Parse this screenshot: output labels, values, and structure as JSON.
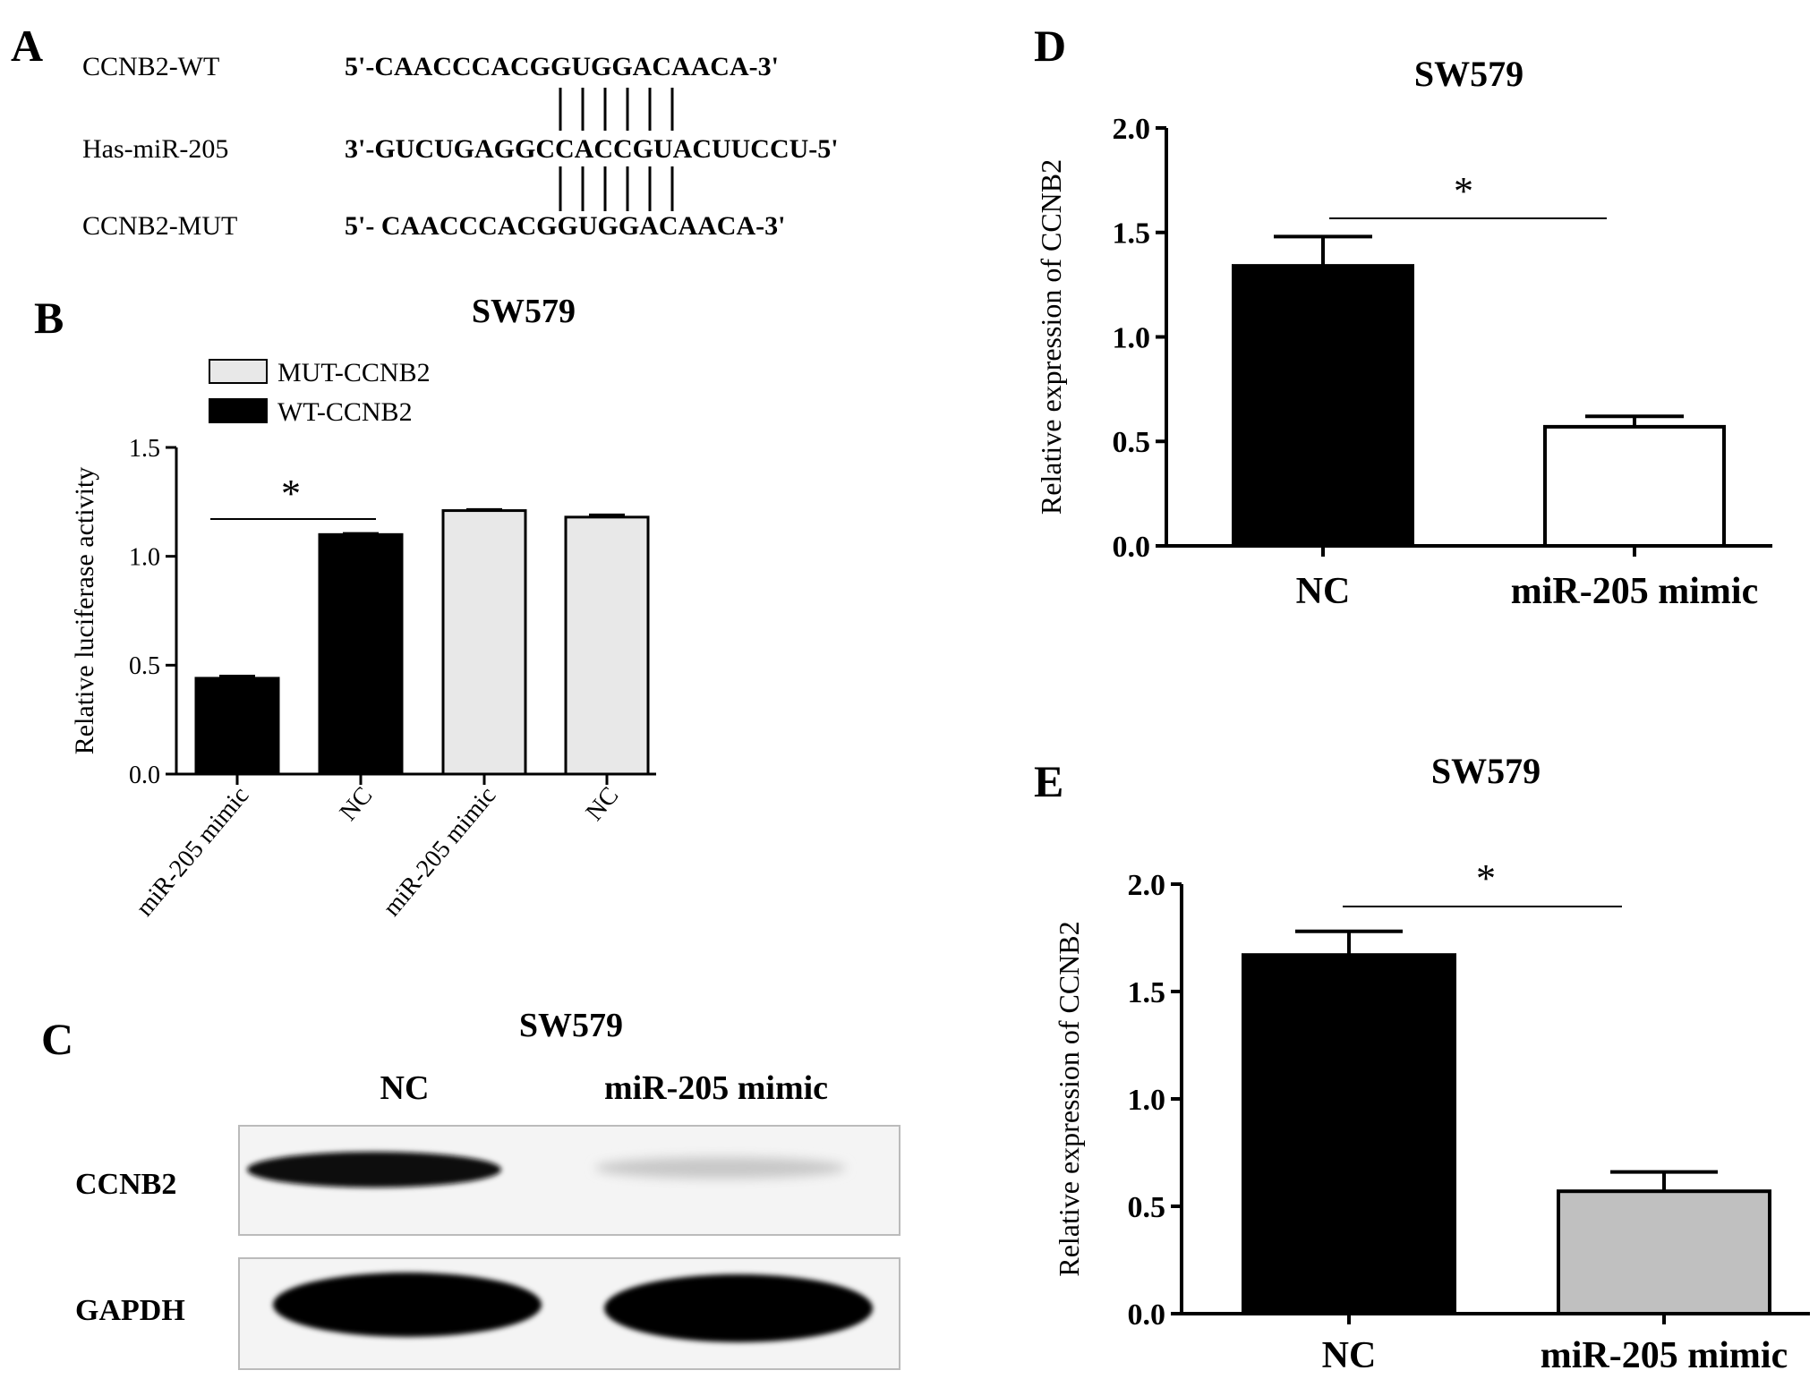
{
  "panel_letters": {
    "a": "A",
    "b": "B",
    "c": "C",
    "d": "D",
    "e": "E"
  },
  "panel_a": {
    "rows": [
      {
        "label": "CCNB2-WT",
        "sequence": "5'-CAACCCACGGUGGACAACA-3'"
      },
      {
        "label": "Has-miR-205",
        "sequence": "3'-GUCUGAGGCCACCGUACUUCCU-5'"
      },
      {
        "label": "CCNB2-MUT",
        "sequence": "5'- CAACCCACGGUGGACAACA-3'"
      }
    ]
  },
  "panel_c": {
    "title": "SW579",
    "lanes": [
      "NC",
      "miR-205 mimic"
    ],
    "blots": [
      "CCNB2",
      "GAPDH"
    ]
  },
  "chart_data": [
    {
      "panel": "B",
      "type": "bar",
      "title": "SW579",
      "ylabel": "Relative luciferase activity",
      "xlabel": "",
      "ylim": [
        0,
        1.5
      ],
      "yticks": [
        "0.0",
        "0.5",
        "1.0",
        "1.5"
      ],
      "categories": [
        "miR-205 mimic",
        "NC",
        "miR-205 mimic",
        "NC"
      ],
      "values": [
        0.44,
        1.1,
        1.21,
        1.18
      ],
      "errors": [
        0.01,
        0.005,
        0.005,
        0.01
      ],
      "bar_series": [
        "WT-CCNB2",
        "WT-CCNB2",
        "MUT-CCNB2",
        "MUT-CCNB2"
      ],
      "legend": [
        {
          "name": "MUT-CCNB2",
          "color": "#e8e8e8"
        },
        {
          "name": "WT-CCNB2",
          "color": "#000000"
        }
      ],
      "significance": {
        "from": 0,
        "to": 1,
        "label": "*"
      }
    },
    {
      "panel": "D",
      "type": "bar",
      "title": "SW579",
      "ylabel": "Relative expression of CCNB2",
      "xlabel": "",
      "ylim": [
        0,
        2.0
      ],
      "yticks": [
        "0.0",
        "0.5",
        "1.0",
        "1.5",
        "2.0"
      ],
      "categories": [
        "NC",
        "miR-205 mimic"
      ],
      "values": [
        1.34,
        0.57
      ],
      "errors": [
        0.14,
        0.05
      ],
      "colors": [
        "#000000",
        "#ffffff"
      ],
      "significance": {
        "from": 0,
        "to": 1,
        "label": "*"
      }
    },
    {
      "panel": "E",
      "type": "bar",
      "title": "SW579",
      "ylabel": "Relative expression of CCNB2",
      "xlabel": "",
      "ylim": [
        0,
        2.0
      ],
      "yticks": [
        "0.0",
        "0.5",
        "1.0",
        "1.5",
        "2.0"
      ],
      "categories": [
        "NC",
        "miR-205 mimic"
      ],
      "values": [
        1.67,
        0.57
      ],
      "errors": [
        0.11,
        0.09
      ],
      "colors": [
        "#000000",
        "#c0c0c0"
      ],
      "significance": {
        "from": 0,
        "to": 1,
        "label": "*"
      }
    }
  ]
}
